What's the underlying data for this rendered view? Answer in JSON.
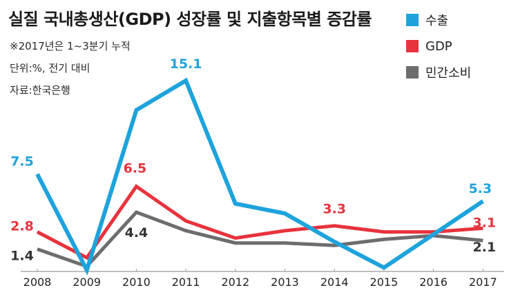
{
  "title": "실질 국내총생산(GDP) 성장률 및 지출항목별 증감률",
  "notes": [
    "※2017년은 1~3분기 누적",
    "단위:%, 전기 대비",
    "자료:한국은행"
  ],
  "legend": [
    {
      "label": "수출",
      "color": "#1ea3dc"
    },
    {
      "label": "GDP",
      "color": "#e8323c"
    },
    {
      "label": "민간소비",
      "color": "#6d6d6d"
    }
  ],
  "chart_data": {
    "type": "line",
    "categories": [
      "2008",
      "2009",
      "2010",
      "2011",
      "2012",
      "2013",
      "2014",
      "2015",
      "2016",
      "2017"
    ],
    "series": [
      {
        "name": "수출",
        "color": "#1ea3dc",
        "values": [
          7.5,
          -0.3,
          12.7,
          15.1,
          5.1,
          4.3,
          2.0,
          -0.1,
          2.6,
          5.3
        ]
      },
      {
        "name": "GDP",
        "color": "#e8323c",
        "values": [
          2.8,
          0.7,
          6.5,
          3.7,
          2.3,
          2.9,
          3.3,
          2.8,
          2.8,
          3.1
        ]
      },
      {
        "name": "민간소비",
        "color": "#6d6d6d",
        "values": [
          1.4,
          0.0,
          4.4,
          2.9,
          1.9,
          1.9,
          1.7,
          2.2,
          2.5,
          2.1
        ]
      }
    ],
    "data_labels": [
      {
        "series": 0,
        "index": 0,
        "text": "7.5",
        "color": "#1ea3dc"
      },
      {
        "series": 0,
        "index": 3,
        "text": "15.1",
        "color": "#1ea3dc"
      },
      {
        "series": 0,
        "index": 9,
        "text": "5.3",
        "color": "#1ea3dc"
      },
      {
        "series": 1,
        "index": 0,
        "text": "2.8",
        "color": "#e8323c"
      },
      {
        "series": 1,
        "index": 2,
        "text": "6.5",
        "color": "#e8323c"
      },
      {
        "series": 1,
        "index": 6,
        "text": "3.3",
        "color": "#e8323c"
      },
      {
        "series": 1,
        "index": 9,
        "text": "3.1",
        "color": "#e8323c"
      },
      {
        "series": 2,
        "index": 0,
        "text": "1.4",
        "color": "#333333"
      },
      {
        "series": 2,
        "index": 2,
        "text": "4.4",
        "color": "#333333"
      },
      {
        "series": 2,
        "index": 9,
        "text": "2.1",
        "color": "#333333"
      }
    ],
    "ylim": [
      -0.3,
      15.1
    ],
    "grid": false,
    "legend_position": "top-right"
  }
}
